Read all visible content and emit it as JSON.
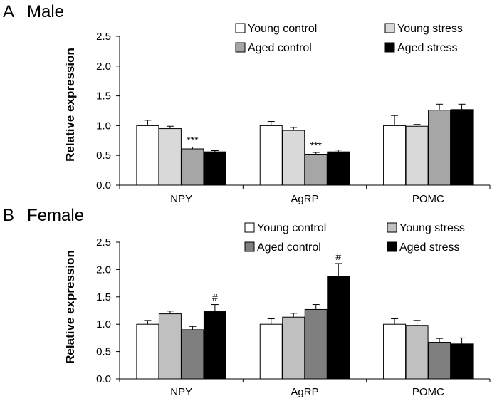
{
  "chart_data": [
    {
      "type": "bar",
      "panel_letter": "A",
      "title": "Male",
      "ylabel": "Relative expression",
      "xlabel": "",
      "ylim": [
        0,
        2.5
      ],
      "yticks": [
        "0.0",
        "0.5",
        "1.0",
        "1.5",
        "2.0",
        "2.5"
      ],
      "categories": [
        "NPY",
        "AgRP",
        "POMC"
      ],
      "legend_position": "top-right",
      "series": [
        {
          "name": "Young control",
          "color": "#ffffff",
          "values": [
            1.0,
            1.0,
            1.0
          ],
          "errors": [
            0.09,
            0.07,
            0.17
          ]
        },
        {
          "name": "Young stress",
          "color": "#d9d9d9",
          "values": [
            0.95,
            0.92,
            0.99
          ],
          "errors": [
            0.04,
            0.05,
            0.03
          ]
        },
        {
          "name": "Aged control",
          "color": "#a6a6a6",
          "values": [
            0.61,
            0.52,
            1.26
          ],
          "errors": [
            0.03,
            0.03,
            0.1
          ]
        },
        {
          "name": "Aged stress",
          "color": "#000000",
          "values": [
            0.56,
            0.56,
            1.27
          ],
          "errors": [
            0.02,
            0.03,
            0.09
          ]
        }
      ],
      "annotations": [
        {
          "category": 0,
          "series": 2,
          "text": "***"
        },
        {
          "category": 1,
          "series": 2,
          "text": "***"
        }
      ]
    },
    {
      "type": "bar",
      "panel_letter": "B",
      "title": "Female",
      "ylabel": "Relative expression",
      "xlabel": "",
      "ylim": [
        0,
        2.5
      ],
      "yticks": [
        "0.0",
        "0.5",
        "1.0",
        "1.5",
        "2.0",
        "2.5"
      ],
      "categories": [
        "NPY",
        "AgRP",
        "POMC"
      ],
      "legend_position": "top-right",
      "series": [
        {
          "name": "Young control",
          "color": "#ffffff",
          "values": [
            1.0,
            1.0,
            1.0
          ],
          "errors": [
            0.07,
            0.1,
            0.1
          ]
        },
        {
          "name": "Young stress",
          "color": "#c0c0c0",
          "values": [
            1.19,
            1.13,
            0.98
          ],
          "errors": [
            0.05,
            0.07,
            0.09
          ]
        },
        {
          "name": "Aged control",
          "color": "#7f7f7f",
          "values": [
            0.9,
            1.27,
            0.67
          ],
          "errors": [
            0.06,
            0.09,
            0.07
          ]
        },
        {
          "name": "Aged stress",
          "color": "#000000",
          "values": [
            1.23,
            1.88,
            0.64
          ],
          "errors": [
            0.13,
            0.23,
            0.11
          ]
        }
      ],
      "annotations": [
        {
          "category": 0,
          "series": 3,
          "text": "#"
        },
        {
          "category": 1,
          "series": 3,
          "text": "#"
        }
      ]
    }
  ]
}
